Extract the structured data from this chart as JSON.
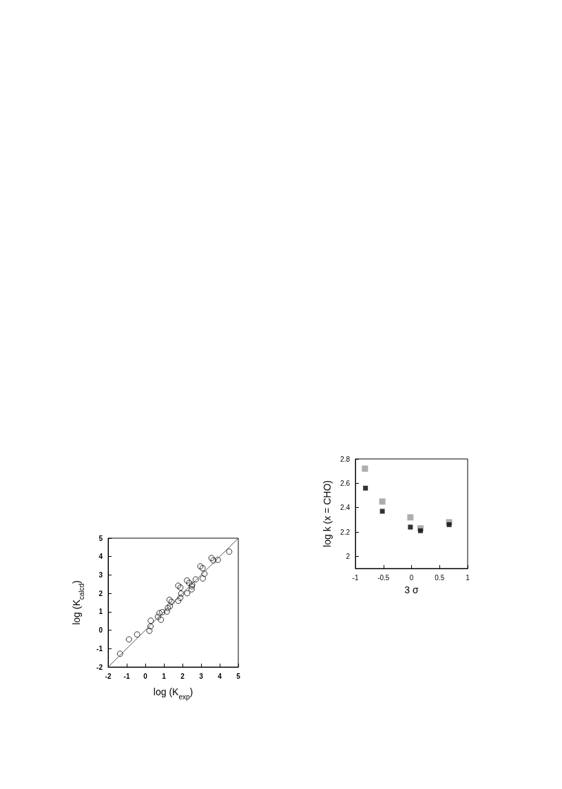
{
  "chart_data": [
    {
      "type": "scatter",
      "xlabel": "log (K$_{exp}$)",
      "ylabel": "log (K$_{calcd}$)",
      "xlim": [
        -2,
        5
      ],
      "ylim": [
        -2,
        5
      ],
      "xticks": [
        -2,
        -1,
        0,
        1,
        2,
        3,
        4,
        5
      ],
      "yticks": [
        -2,
        -1,
        0,
        1,
        2,
        3,
        4,
        5
      ],
      "series": [
        {
          "marker": "circle",
          "color": "#000000",
          "x": [
            -1.36,
            -0.88,
            -0.44,
            0.22,
            0.28,
            0.29,
            0.68,
            0.76,
            0.84,
            0.91,
            1.16,
            1.21,
            1.3,
            1.32,
            1.41,
            1.77,
            1.77,
            1.89,
            1.88,
            1.93,
            2.25,
            2.24,
            2.36,
            2.49,
            2.5,
            2.52,
            2.71,
            2.96,
            3.08,
            3.18,
            3.09,
            3.56,
            3.66,
            3.9,
            4.51
          ],
          "values": [
            -1.28,
            -0.5,
            -0.23,
            -0.03,
            0.21,
            0.52,
            0.73,
            0.93,
            0.57,
            0.98,
            1.01,
            1.21,
            1.65,
            1.3,
            1.54,
            1.6,
            2.42,
            2.32,
            1.76,
            1.99,
            2.01,
            2.7,
            2.57,
            2.22,
            2.38,
            2.47,
            2.76,
            3.47,
            3.37,
            3.07,
            2.81,
            3.92,
            3.79,
            3.82,
            4.27
          ]
        },
        {
          "type": "line",
          "marker": "none",
          "color": "#555555",
          "x": [
            -2,
            5
          ],
          "values": [
            -2,
            5
          ]
        }
      ]
    },
    {
      "type": "scatter",
      "xlabel": "3 σ",
      "ylabel": "log k (x = CHO)",
      "marker": "square",
      "xlim": [
        -1,
        1
      ],
      "ylim": [
        1.9,
        2.8
      ],
      "xticks": [
        -1,
        -0.5,
        0,
        0.5,
        1
      ],
      "yticks": [
        2,
        2.2,
        2.4,
        2.6,
        2.8
      ],
      "series": [
        {
          "color": "#999999",
          "x": [
            -0.83,
            -0.52,
            -0.02,
            0.16,
            0.67
          ],
          "values": [
            2.72,
            2.45,
            2.32,
            2.23,
            2.28
          ]
        },
        {
          "color": "#000000",
          "x": [
            -0.82,
            -0.52,
            -0.02,
            0.16,
            0.67
          ],
          "values": [
            2.56,
            2.37,
            2.24,
            2.21,
            2.26
          ]
        }
      ]
    }
  ]
}
